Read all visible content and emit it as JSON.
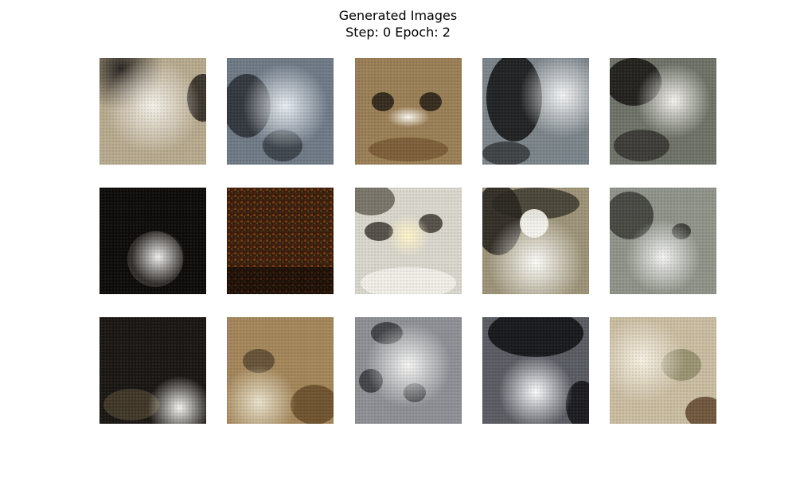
{
  "figure": {
    "title_line1": "Generated Images",
    "title_line2": "Step: 0 Epoch: 2"
  },
  "grid": {
    "rows": 3,
    "cols": 5,
    "samples": [
      {
        "row": 1,
        "col": 1,
        "base": "#b6a98e",
        "tone": "beige"
      },
      {
        "row": 1,
        "col": 2,
        "base": "#6f7a86",
        "tone": "grey-blue"
      },
      {
        "row": 1,
        "col": 3,
        "base": "#9a7f56",
        "tone": "brown"
      },
      {
        "row": 1,
        "col": 4,
        "base": "#7b848a",
        "tone": "grey"
      },
      {
        "row": 1,
        "col": 5,
        "base": "#6e7268",
        "tone": "dark-grey"
      },
      {
        "row": 2,
        "col": 1,
        "base": "#3a3533",
        "tone": "dark"
      },
      {
        "row": 2,
        "col": 2,
        "base": "#3b1d0c",
        "tone": "dark-orange"
      },
      {
        "row": 2,
        "col": 3,
        "base": "#b4ab98",
        "tone": "light"
      },
      {
        "row": 2,
        "col": 4,
        "base": "#9c9378",
        "tone": "tan"
      },
      {
        "row": 2,
        "col": 5,
        "base": "#8f9389",
        "tone": "grey"
      },
      {
        "row": 3,
        "col": 1,
        "base": "#2b2520",
        "tone": "dark"
      },
      {
        "row": 3,
        "col": 2,
        "base": "#a3865a",
        "tone": "tan-brown"
      },
      {
        "row": 3,
        "col": 3,
        "base": "#8d8f94",
        "tone": "grey"
      },
      {
        "row": 3,
        "col": 4,
        "base": "#5a5c63",
        "tone": "dark-grey"
      },
      {
        "row": 3,
        "col": 5,
        "base": "#c9bca1",
        "tone": "light-beige"
      }
    ]
  }
}
